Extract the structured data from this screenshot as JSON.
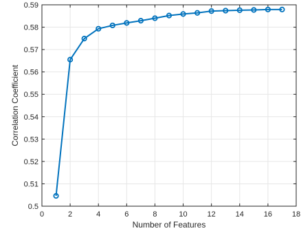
{
  "chart_data": {
    "type": "line",
    "title": "",
    "xlabel": "Number of Features",
    "ylabel": "Correlation Coefficient",
    "xlim": [
      0,
      18
    ],
    "ylim": [
      0.5,
      0.59
    ],
    "xticks": [
      0,
      2,
      4,
      6,
      8,
      10,
      12,
      14,
      16,
      18
    ],
    "yticks": [
      0.5,
      0.51,
      0.52,
      0.53,
      0.54,
      0.55,
      0.56,
      0.57,
      0.58,
      0.59
    ],
    "xtick_labels": [
      "0",
      "2",
      "4",
      "6",
      "8",
      "10",
      "12",
      "14",
      "16",
      "18"
    ],
    "ytick_labels": [
      "0.5",
      "0.51",
      "0.52",
      "0.53",
      "0.54",
      "0.55",
      "0.56",
      "0.57",
      "0.58",
      "0.59"
    ],
    "grid": true,
    "color": "#0072BD",
    "marker": "circle",
    "series": [
      {
        "x": [
          1,
          2,
          3,
          4,
          5,
          6,
          7,
          8,
          9,
          10,
          11,
          12,
          13,
          14,
          15,
          16,
          17
        ],
        "values": [
          0.5046,
          0.5655,
          0.5749,
          0.5793,
          0.5808,
          0.5819,
          0.5829,
          0.584,
          0.5852,
          0.5859,
          0.5864,
          0.5872,
          0.5874,
          0.5876,
          0.5877,
          0.5879,
          0.5879
        ]
      }
    ]
  }
}
